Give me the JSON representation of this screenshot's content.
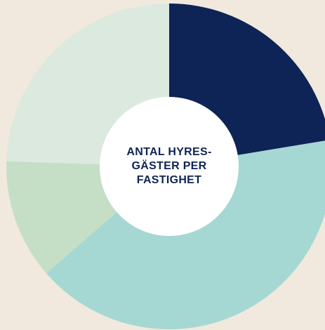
{
  "chart_data": {
    "type": "pie",
    "donut": true,
    "title": "ANTAL HYRES-\nGÄSTER PER\nFASTIGHET",
    "title_lines": [
      "ANTAL HYRES-",
      "GÄSTER PER",
      "FASTIGHET"
    ],
    "categories": [
      "",
      "",
      "",
      ""
    ],
    "values": [
      22.4,
      41.2,
      11.9,
      24.5
    ],
    "colors": [
      "#0e2356",
      "#a5d8d3",
      "#c5dfc6",
      "#dce9df"
    ],
    "hole_color": "#ffffff",
    "start_angle_deg": 0,
    "direction": "clockwise"
  }
}
